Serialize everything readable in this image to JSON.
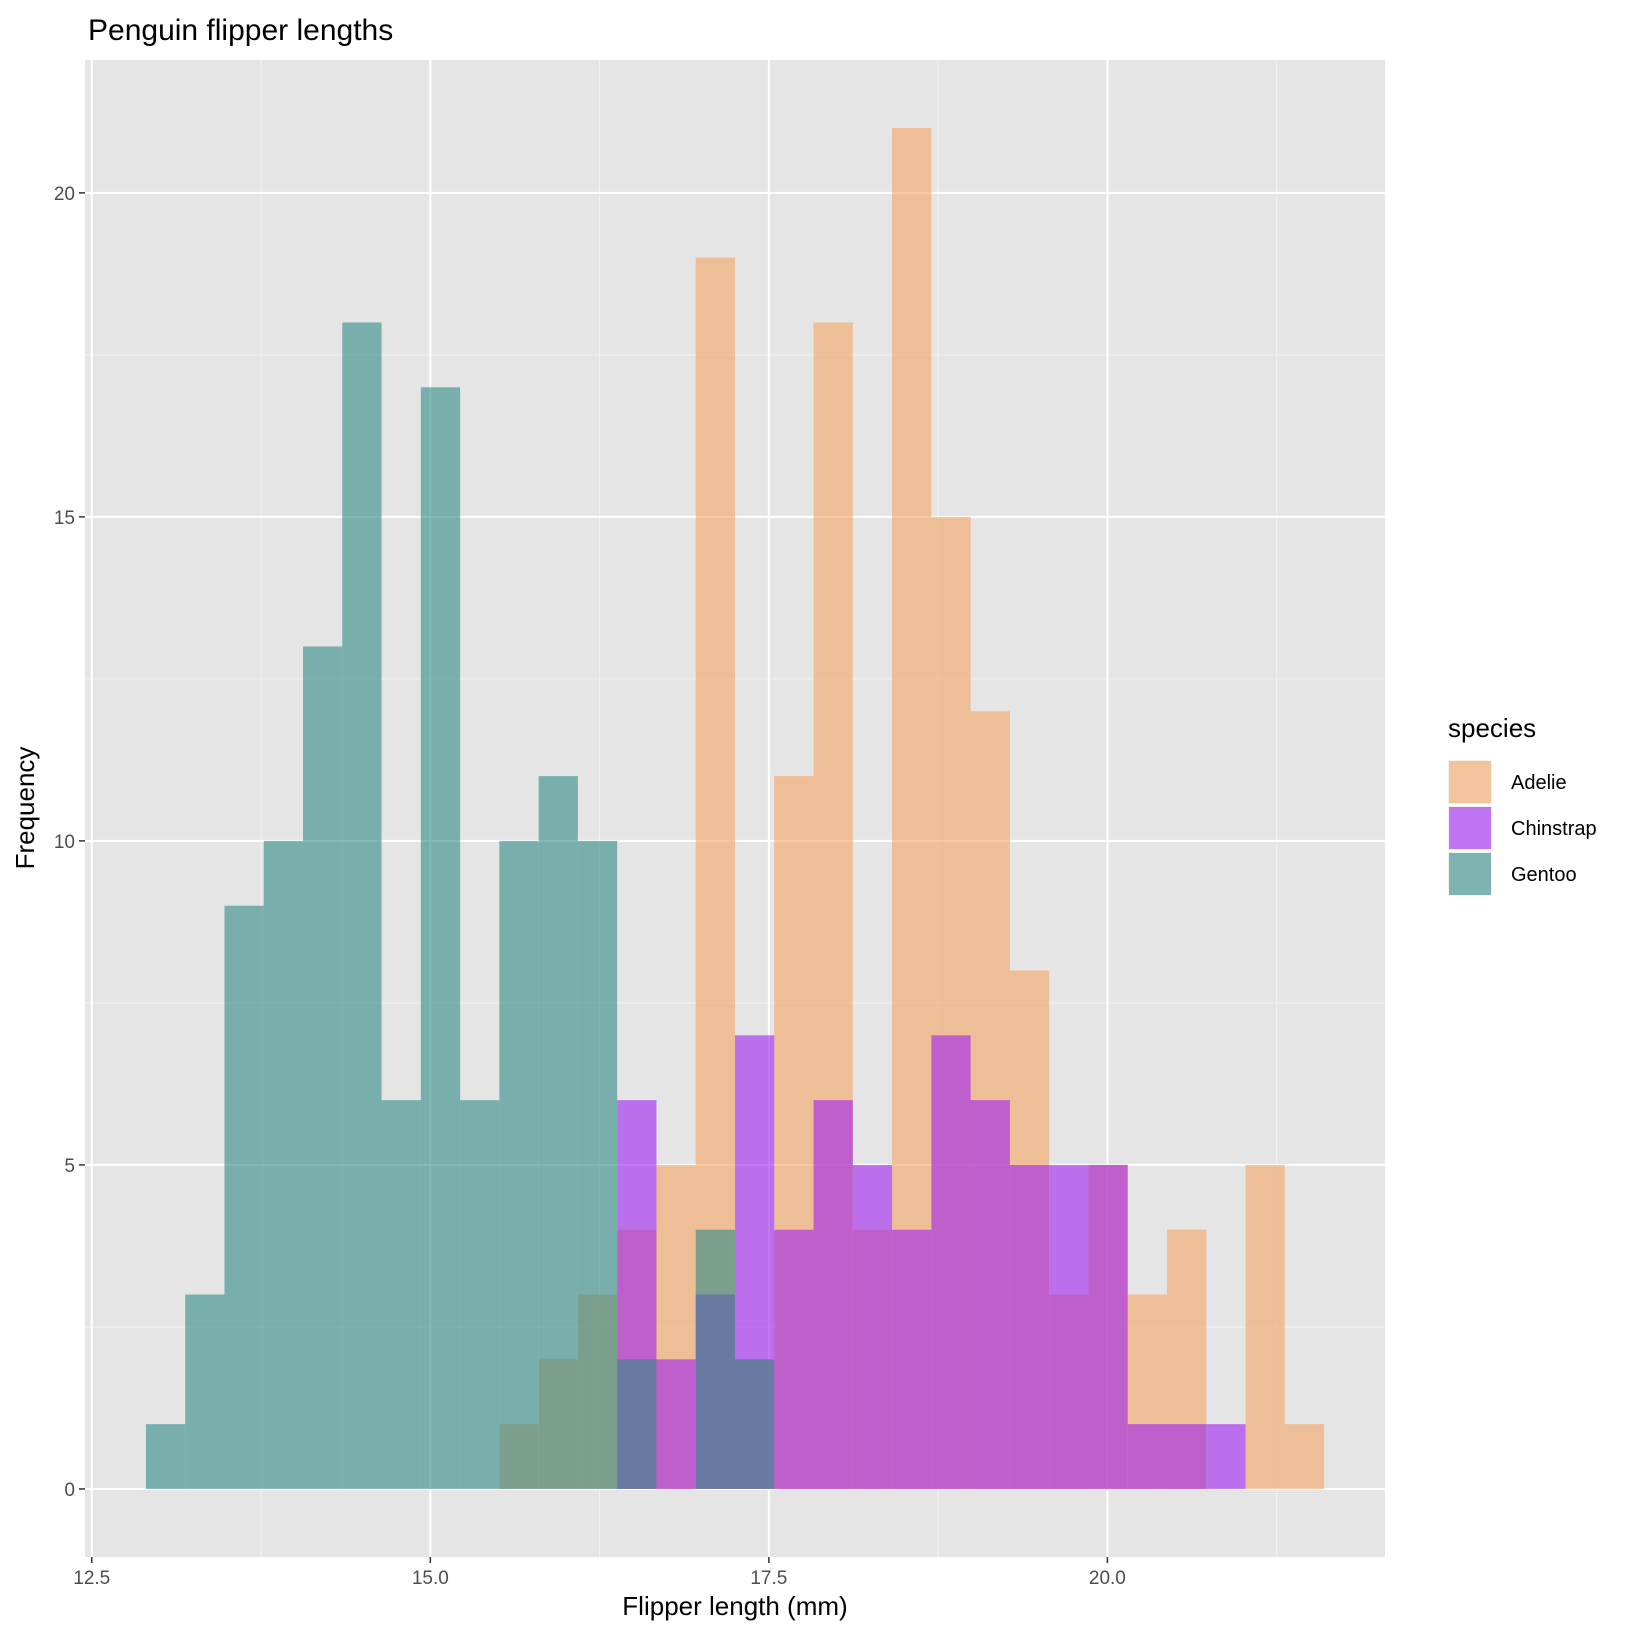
{
  "chart_data": {
    "type": "bar",
    "title": "Penguin flipper lengths",
    "xlabel": "Flipper length (mm)",
    "ylabel": "Frequency",
    "xlim": [
      12.45,
      22.05
    ],
    "ylim": [
      -1.05,
      22.05
    ],
    "x_ticks": [
      12.5,
      15.0,
      17.5,
      20.0
    ],
    "x_tick_labels": [
      "12.5",
      "15.0",
      "17.5",
      "20.0"
    ],
    "y_ticks": [
      0,
      5,
      10,
      15,
      20
    ],
    "y_tick_labels": [
      "0",
      "5",
      "10",
      "15",
      "20"
    ],
    "grid": true,
    "legend": {
      "title": "species",
      "position": "right"
    },
    "bin_starts": [
      12.9,
      13.19,
      13.48,
      13.77,
      14.06,
      14.35,
      14.64,
      14.93,
      15.22,
      15.51,
      15.8,
      16.09,
      16.38,
      16.67,
      16.96,
      17.25,
      17.54,
      17.83,
      18.12,
      18.41,
      18.7,
      18.99,
      19.28,
      19.57,
      19.86,
      20.15,
      20.44,
      20.73,
      21.02,
      21.31
    ],
    "bin_width": 0.29,
    "series": [
      {
        "name": "Adelie",
        "color": "#f4a460",
        "values": [
          0,
          0,
          0,
          0,
          0,
          0,
          0,
          0,
          0,
          1,
          2,
          3,
          4,
          5,
          19,
          2,
          11,
          18,
          4,
          21,
          15,
          12,
          8,
          3,
          5,
          3,
          4,
          0,
          5,
          1
        ]
      },
      {
        "name": "Chinstrap",
        "color": "#a020f0",
        "values": [
          0,
          0,
          0,
          0,
          0,
          0,
          0,
          0,
          0,
          0,
          0,
          0,
          6,
          2,
          3,
          7,
          4,
          6,
          5,
          4,
          7,
          6,
          5,
          5,
          5,
          1,
          1,
          1,
          0,
          0
        ]
      },
      {
        "name": "Gentoo",
        "color": "#2e8b87",
        "values": [
          1,
          3,
          9,
          10,
          13,
          18,
          6,
          17,
          6,
          10,
          11,
          10,
          2,
          0,
          4,
          2,
          0,
          0,
          0,
          0,
          0,
          0,
          0,
          0,
          0,
          0,
          0,
          0,
          0,
          0
        ]
      }
    ]
  }
}
